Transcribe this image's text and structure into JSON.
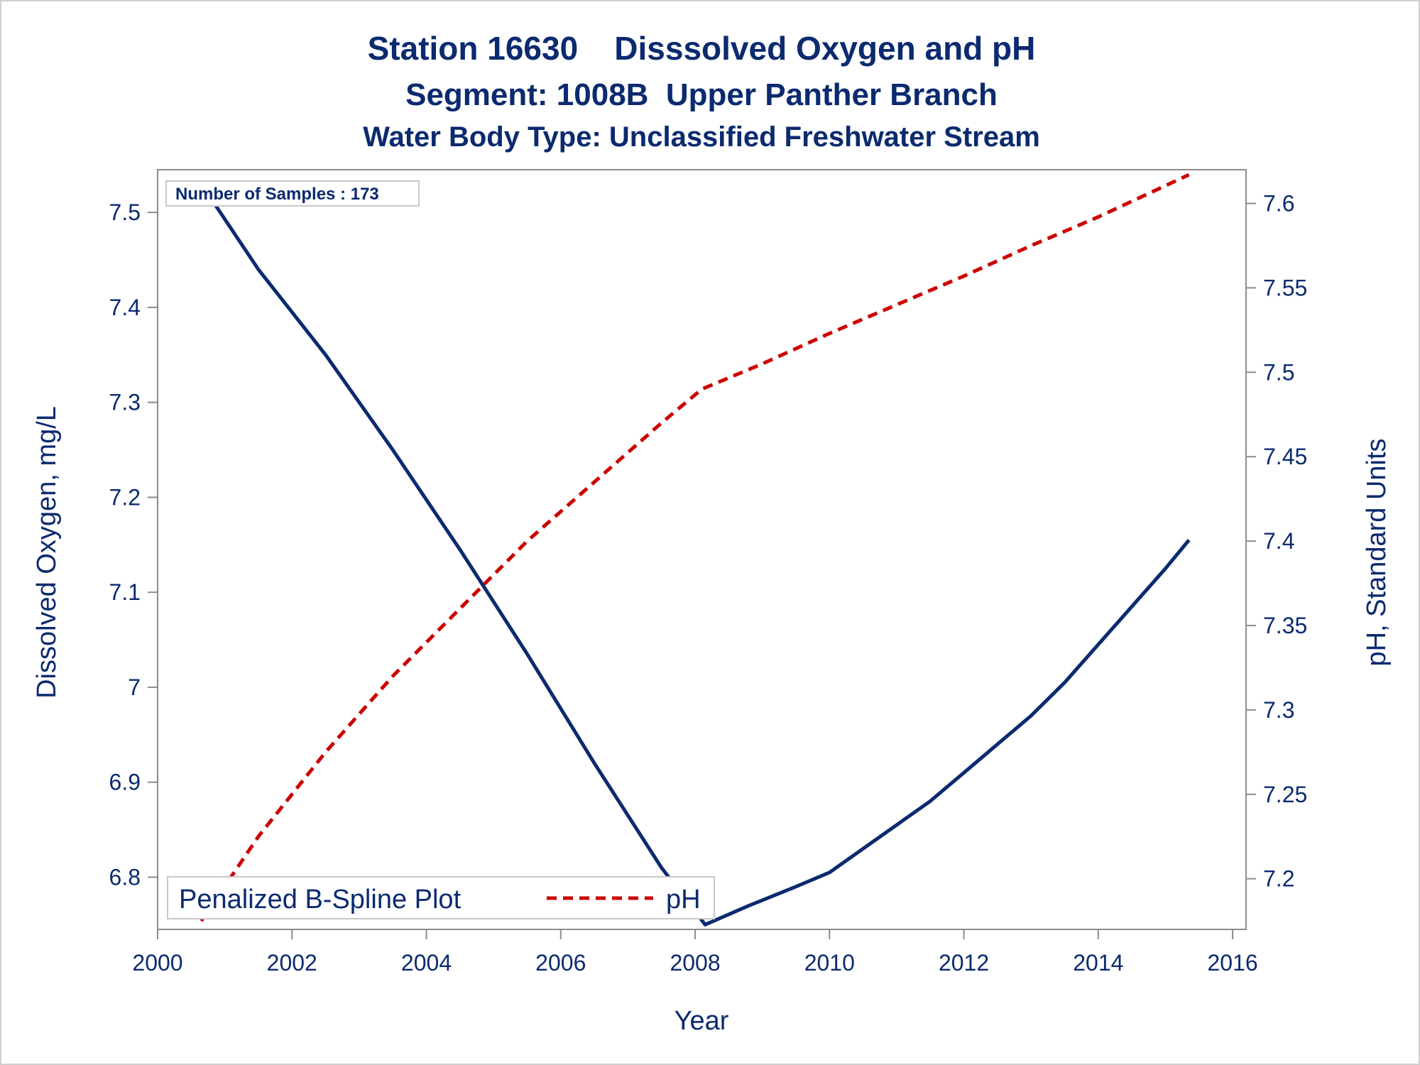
{
  "chart_data": {
    "type": "line",
    "title": "Station 16630    Disssolved Oxygen and pH",
    "subtitle": "Segment: 1008B  Upper Panther Branch",
    "subtitle2": "Water Body Type: Unclassified Freshwater Stream",
    "xlabel": "Year",
    "ylabel": "Dissolved Oxygen, mg/L",
    "y2label": "pH, Standard Units",
    "xlim": [
      2000,
      2016.2
    ],
    "ylim": [
      6.745,
      7.545
    ],
    "y2lim": [
      7.17,
      7.62
    ],
    "x_ticks": [
      2000,
      2002,
      2004,
      2006,
      2008,
      2010,
      2012,
      2014,
      2016
    ],
    "y_ticks": [
      6.8,
      6.9,
      7,
      7.1,
      7.2,
      7.3,
      7.4,
      7.5
    ],
    "y_tick_labels": [
      "6.8",
      "6.9",
      "7",
      "7.1",
      "7.2",
      "7.3",
      "7.4",
      "7.5"
    ],
    "y2_ticks": [
      7.2,
      7.25,
      7.3,
      7.35,
      7.4,
      7.45,
      7.5,
      7.55,
      7.6
    ],
    "y2_tick_labels": [
      "7.2",
      "7.25",
      "7.3",
      "7.35",
      "7.4",
      "7.45",
      "7.5",
      "7.55",
      "7.6"
    ],
    "annotation": "Number of Samples : 173",
    "legend_title": "Penalized B-Spline Plot",
    "legend_position": "bottom-left",
    "grid": false,
    "series": [
      {
        "axis": "left",
        "color": "#0b2a6f",
        "style": "solid",
        "x": [
          2000.65,
          2001.5,
          2002.5,
          2003.5,
          2004.5,
          2005.5,
          2006.5,
          2007.5,
          2008.15,
          2008.8,
          2009.5,
          2010,
          2010.5,
          2011,
          2011.5,
          2012,
          2012.5,
          2013,
          2013.5,
          2014,
          2014.5,
          2015,
          2015.35
        ],
        "values": [
          7.53,
          7.44,
          7.35,
          7.25,
          7.145,
          7.035,
          6.92,
          6.81,
          6.75,
          6.77,
          6.79,
          6.805,
          6.83,
          6.855,
          6.88,
          6.91,
          6.94,
          6.97,
          7.005,
          7.045,
          7.085,
          7.125,
          7.155
        ]
      },
      {
        "name": "pH",
        "axis": "right",
        "color": "#cc0000",
        "style": "dashed",
        "x": [
          2000.65,
          2001.5,
          2002.5,
          2003.5,
          2004.5,
          2005.5,
          2006.5,
          2007.5,
          2008.1,
          2009,
          2010,
          2011,
          2012,
          2013,
          2014,
          2015.35
        ],
        "values": [
          7.175,
          7.225,
          7.275,
          7.32,
          7.36,
          7.4,
          7.435,
          7.47,
          7.49,
          7.505,
          7.523,
          7.54,
          7.557,
          7.575,
          7.592,
          7.617
        ]
      }
    ]
  }
}
